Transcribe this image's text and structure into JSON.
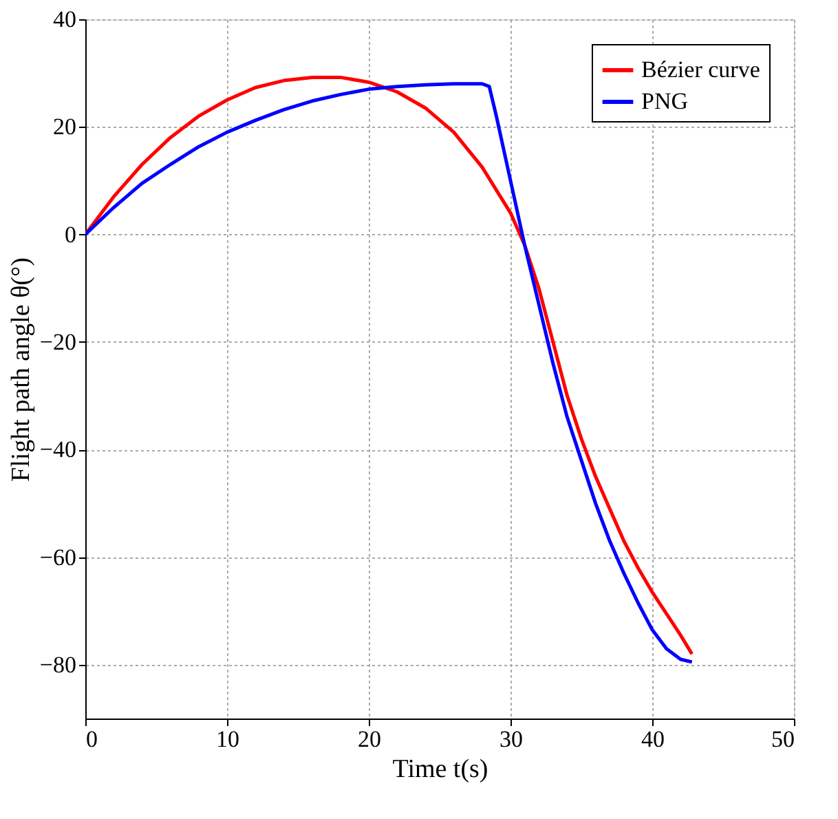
{
  "chart_data": {
    "type": "line",
    "xlabel": "Time  t(s)",
    "ylabel": "Flight path angle  θ(°)",
    "xlim": [
      0,
      50
    ],
    "xticks": [
      0,
      10,
      20,
      30,
      40,
      50
    ],
    "ylim": [
      -90,
      40
    ],
    "yticks": [
      -80,
      -60,
      -40,
      -20,
      0,
      20,
      40
    ],
    "grid": true,
    "legend": "top right",
    "marker": "none",
    "line_style": "solid",
    "series": [
      {
        "name": "Bézier curve",
        "color": "#ff0000",
        "x": [
          0,
          2,
          4,
          6,
          8,
          10,
          12,
          14,
          16,
          18,
          20,
          22,
          24,
          26,
          28,
          30,
          31,
          32,
          33,
          34,
          35,
          36,
          37,
          38,
          39,
          40,
          41,
          42,
          42.8
        ],
        "values": [
          0,
          7,
          13,
          18,
          22,
          25,
          27.3,
          28.6,
          29.2,
          29.2,
          28.3,
          26.5,
          23.5,
          19,
          12.5,
          4,
          -2,
          -10,
          -20,
          -30,
          -38,
          -45,
          -51,
          -57,
          -62,
          -66.5,
          -70.5,
          -74.5,
          -78
        ]
      },
      {
        "name": "PNG",
        "color": "#0000ff",
        "x": [
          0,
          2,
          4,
          6,
          8,
          10,
          12,
          14,
          16,
          18,
          20,
          22,
          24,
          26,
          28,
          28.5,
          29,
          30,
          31,
          32,
          33,
          34,
          35,
          36,
          37,
          38,
          39,
          40,
          41,
          42,
          42.8
        ],
        "values": [
          0,
          5,
          9.5,
          13,
          16.3,
          19,
          21.2,
          23.2,
          24.8,
          26,
          27,
          27.5,
          27.8,
          28,
          28,
          27.5,
          22,
          10,
          -2,
          -13,
          -24,
          -34,
          -42,
          -50,
          -57,
          -63,
          -68.5,
          -73.5,
          -77,
          -79,
          -79.5
        ]
      }
    ]
  }
}
